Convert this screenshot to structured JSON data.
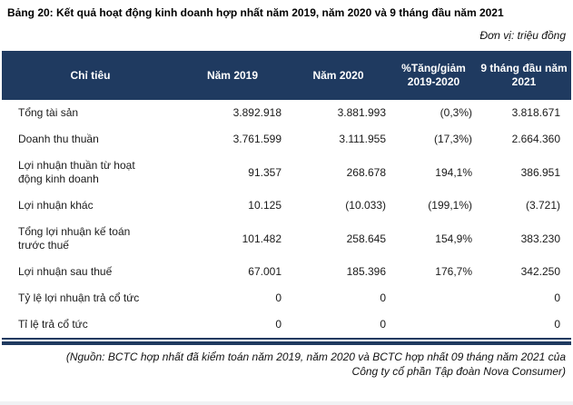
{
  "page": {
    "title": "Bảng 20: Kết quả hoạt động kinh doanh hợp nhất năm 2019, năm 2020 và 9 tháng đầu năm 2021",
    "unit_note": "Đơn vị: triệu đồng"
  },
  "colors": {
    "header_bg": "#1F3A60",
    "header_text": "#FFFFFF"
  },
  "table": {
    "columns": [
      "Chỉ tiêu",
      "Năm 2019",
      "Năm 2020",
      "%Tăng/giảm 2019-2020",
      "9 tháng đầu năm 2021"
    ],
    "rows": [
      {
        "label": "Tổng tài sản",
        "values": [
          "3.892.918",
          "3.881.993",
          "(0,3%)",
          "3.818.671"
        ]
      },
      {
        "label": "Doanh thu thuần",
        "values": [
          "3.761.599",
          "3.111.955",
          "(17,3%)",
          "2.664.360"
        ]
      },
      {
        "label": "Lợi nhuận thuần từ hoạt động kinh doanh",
        "values": [
          "91.357",
          "268.678",
          "194,1%",
          "386.951"
        ]
      },
      {
        "label": "Lợi nhuận khác",
        "values": [
          "10.125",
          "(10.033)",
          "(199,1%)",
          "(3.721)"
        ]
      },
      {
        "label": "Tổng lợi nhuận kế toán trước thuế",
        "values": [
          "101.482",
          "258.645",
          "154,9%",
          "383.230"
        ]
      },
      {
        "label": "Lợi nhuận sau thuế",
        "values": [
          "67.001",
          "185.396",
          "176,7%",
          "342.250"
        ]
      },
      {
        "label": "Tỷ lệ lợi nhuận trả cổ tức",
        "values": [
          "0",
          "0",
          "",
          "0"
        ]
      },
      {
        "label": "Tỉ lệ trả cổ tức",
        "values": [
          "0",
          "0",
          "",
          "0"
        ]
      }
    ]
  },
  "source_note": {
    "line1": "(Nguồn: BCTC hợp nhất đã kiểm toán năm 2019, năm 2020 và BCTC hợp nhất 09 tháng năm 2021 của",
    "line2": "Công ty cổ phần Tập đoàn Nova Consumer)"
  }
}
